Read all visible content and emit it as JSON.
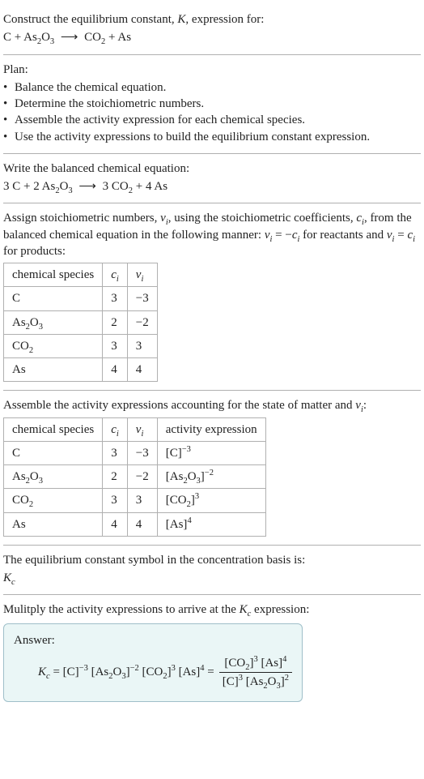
{
  "intro": {
    "line1": "Construct the equilibrium constant, ",
    "K": "K",
    "line1b": ", expression for:",
    "reactants_lhs": "C + As",
    "as_sub1": "2",
    "o": "O",
    "o_sub1": "3",
    "arrow": "⟶",
    "prod_co": "CO",
    "co_sub": "2",
    "plus_as": " + As"
  },
  "plan": {
    "title": "Plan:",
    "items": [
      "Balance the chemical equation.",
      "Determine the stoichiometric numbers.",
      "Assemble the activity expression for each chemical species.",
      "Use the activity expressions to build the equilibrium constant expression."
    ]
  },
  "balanced": {
    "title": "Write the balanced chemical equation:",
    "c_coef": "3",
    "c": " C + ",
    "as_coef": "2",
    "as2o3": " As",
    "as_sub": "2",
    "o": "O",
    "o_sub": "3",
    "arrow": "⟶",
    "co_coef": "3",
    "co2": " CO",
    "co_sub": "2",
    "plus": " + ",
    "as_pcoef": "4",
    "as_p": " As"
  },
  "assign": {
    "p1a": "Assign stoichiometric numbers, ",
    "nu": "ν",
    "i": "i",
    "p1b": ", using the stoichiometric coefficients, ",
    "c": "c",
    "p1c": ", from the balanced chemical equation in the following manner: ",
    "eq1_lhs_nu": "ν",
    "eq1_lhs_i": "i",
    "eq1_eq": " = −",
    "eq1_rhs_c": "c",
    "eq1_rhs_i": "i",
    "p1d": " for reactants and ",
    "eq2_lhs_nu": "ν",
    "eq2_lhs_i": "i",
    "eq2_eq": " = ",
    "eq2_rhs_c": "c",
    "eq2_rhs_i": "i",
    "p1e": " for products:"
  },
  "table1": {
    "h1": "chemical species",
    "h2_c": "c",
    "h2_i": "i",
    "h3_nu": "ν",
    "h3_i": "i",
    "r1": {
      "sp": "C",
      "c": "3",
      "nu": "−3"
    },
    "r2": {
      "sp_a": "As",
      "sp_s1": "2",
      "sp_b": "O",
      "sp_s2": "3",
      "c": "2",
      "nu": "−2"
    },
    "r3": {
      "sp_a": "CO",
      "sp_s1": "2",
      "c": "3",
      "nu": "3"
    },
    "r4": {
      "sp": "As",
      "c": "4",
      "nu": "4"
    }
  },
  "assemble": {
    "p_a": "Assemble the activity expressions accounting for the state of matter and ",
    "nu": "ν",
    "i": "i",
    "p_b": ":"
  },
  "table2": {
    "h1": "chemical species",
    "h2_c": "c",
    "h2_i": "i",
    "h3_nu": "ν",
    "h3_i": "i",
    "h4": "activity expression",
    "r1": {
      "sp": "C",
      "c": "3",
      "nu": "−3",
      "ae_a": "[C]",
      "ae_sup": "−3"
    },
    "r2": {
      "sp_a": "As",
      "sp_s1": "2",
      "sp_b": "O",
      "sp_s2": "3",
      "c": "2",
      "nu": "−2",
      "ae_a": "[As",
      "ae_s1": "2",
      "ae_b": "O",
      "ae_s2": "3",
      "ae_c": "]",
      "ae_sup": "−2"
    },
    "r3": {
      "sp_a": "CO",
      "sp_s1": "2",
      "c": "3",
      "nu": "3",
      "ae_a": "[CO",
      "ae_s1": "2",
      "ae_c": "]",
      "ae_sup": "3"
    },
    "r4": {
      "sp": "As",
      "c": "4",
      "nu": "4",
      "ae_a": "[As]",
      "ae_sup": "4"
    }
  },
  "symbol": {
    "p": "The equilibrium constant symbol in the concentration basis is:",
    "K": "K",
    "c": "c"
  },
  "multiply": {
    "p_a": "Mulitply the activity expressions to arrive at the ",
    "K": "K",
    "c": "c",
    "p_b": " expression:"
  },
  "answer": {
    "title": "Answer:",
    "K": "K",
    "c": "c",
    "eq": " = ",
    "t1": "[C]",
    "t1_sup": "−3",
    "t2a": " [As",
    "t2_s1": "2",
    "t2b": "O",
    "t2_s2": "3",
    "t2c": "]",
    "t2_sup": "−2",
    "t3a": " [CO",
    "t3_s1": "2",
    "t3b": "]",
    "t3_sup": "3",
    "t4": " [As]",
    "t4_sup": "4",
    "eq2": " = ",
    "num_a": "[CO",
    "num_s1": "2",
    "num_b": "]",
    "num_sup1": "3",
    "num_c": " [As]",
    "num_sup2": "4",
    "den_a": "[C]",
    "den_sup1": "3",
    "den_b": " [As",
    "den_s1": "2",
    "den_c": "O",
    "den_s2": "3",
    "den_d": "]",
    "den_sup2": "2"
  }
}
